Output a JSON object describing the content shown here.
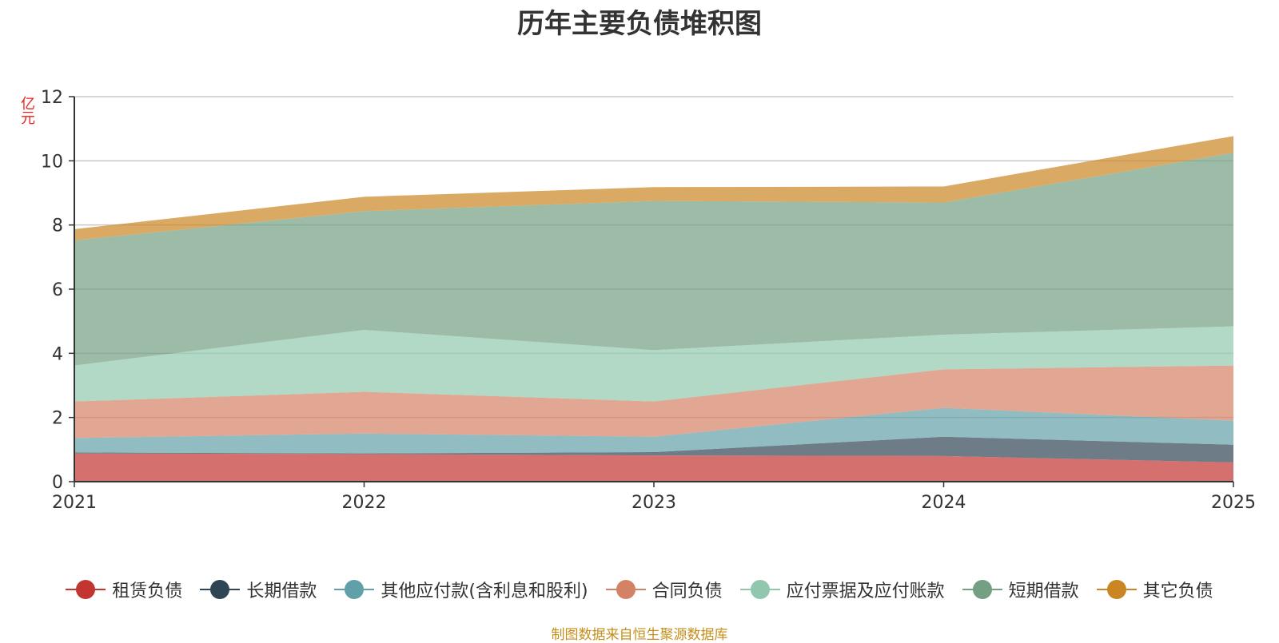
{
  "chart_data": {
    "type": "area",
    "stacked": true,
    "title": "历年主要负债堆积图",
    "unit_label": "亿元",
    "x": [
      "2021",
      "2022",
      "2023",
      "2024",
      "2025"
    ],
    "ylim": [
      0,
      12
    ],
    "yticks": [
      0,
      2,
      4,
      6,
      8,
      10,
      12
    ],
    "grid": true,
    "legend_position": "bottom",
    "series": [
      {
        "name": "租赁负债",
        "color": "#c23531",
        "values": [
          0.88,
          0.86,
          0.82,
          0.8,
          0.6
        ]
      },
      {
        "name": "长期借款",
        "color": "#2f4554",
        "values": [
          0.03,
          0.02,
          0.1,
          0.6,
          0.55
        ]
      },
      {
        "name": "其他应付款(含利息和股利)",
        "color": "#61a0a8",
        "values": [
          0.45,
          0.62,
          0.48,
          0.9,
          0.75
        ]
      },
      {
        "name": "合同负债",
        "color": "#d48265",
        "values": [
          1.14,
          1.3,
          1.1,
          1.2,
          1.72
        ]
      },
      {
        "name": "应付票据及应付账款",
        "color": "#91c7ae",
        "values": [
          1.12,
          1.93,
          1.6,
          1.08,
          1.22
        ]
      },
      {
        "name": "短期借款",
        "color": "#749f83",
        "values": [
          3.9,
          3.7,
          4.65,
          4.12,
          5.41
        ]
      },
      {
        "name": "其它负债",
        "color": "#ca8622",
        "values": [
          0.35,
          0.45,
          0.43,
          0.5,
          0.52
        ]
      }
    ]
  },
  "footer": {
    "source": "制图数据来自恒生聚源数据库"
  }
}
